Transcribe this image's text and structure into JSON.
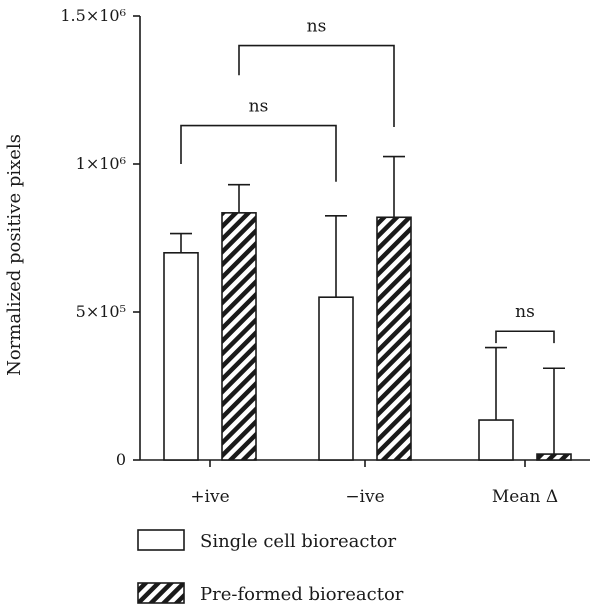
{
  "chart_data": {
    "type": "bar",
    "ylabel": "Normalized positive pixels",
    "ylim": [
      0,
      1500000
    ],
    "y_ticks": [
      {
        "value": 0,
        "label": "0"
      },
      {
        "value": 500000,
        "label": "5×10⁵"
      },
      {
        "value": 1000000,
        "label": "1×10⁶"
      },
      {
        "value": 1500000,
        "label": "1.5×10⁶"
      }
    ],
    "categories": [
      "+ive",
      "−ive",
      "Mean Δ"
    ],
    "series": [
      {
        "name": "Single cell bioreactor",
        "style": "open",
        "values": [
          700000,
          550000,
          135000
        ],
        "errors": [
          65000,
          275000,
          245000
        ]
      },
      {
        "name": "Pre-formed bioreactor",
        "style": "hatched",
        "values": [
          835000,
          820000,
          20000
        ],
        "errors": [
          95000,
          205000,
          290000
        ]
      }
    ],
    "significance": [
      {
        "label": "ns",
        "from": {
          "category": 0,
          "series": 0
        },
        "to": {
          "category": 1,
          "series": 0
        },
        "y": 1130000,
        "left_drop": 1000000,
        "right_drop": 940000
      },
      {
        "label": "ns",
        "from": {
          "category": 0,
          "series": 1
        },
        "to": {
          "category": 1,
          "series": 1
        },
        "y": 1400000,
        "left_drop": 1300000,
        "right_drop": 1125000
      },
      {
        "label": "ns",
        "from": {
          "category": 2,
          "series": 0
        },
        "to": {
          "category": 2,
          "series": 1
        },
        "y": 435000,
        "left_drop": 395000,
        "right_drop": 395000
      }
    ],
    "legend_position": "bottom-left",
    "grid": false,
    "colors": {
      "ink": "#1a1a1a",
      "background": "#ffffff"
    }
  }
}
